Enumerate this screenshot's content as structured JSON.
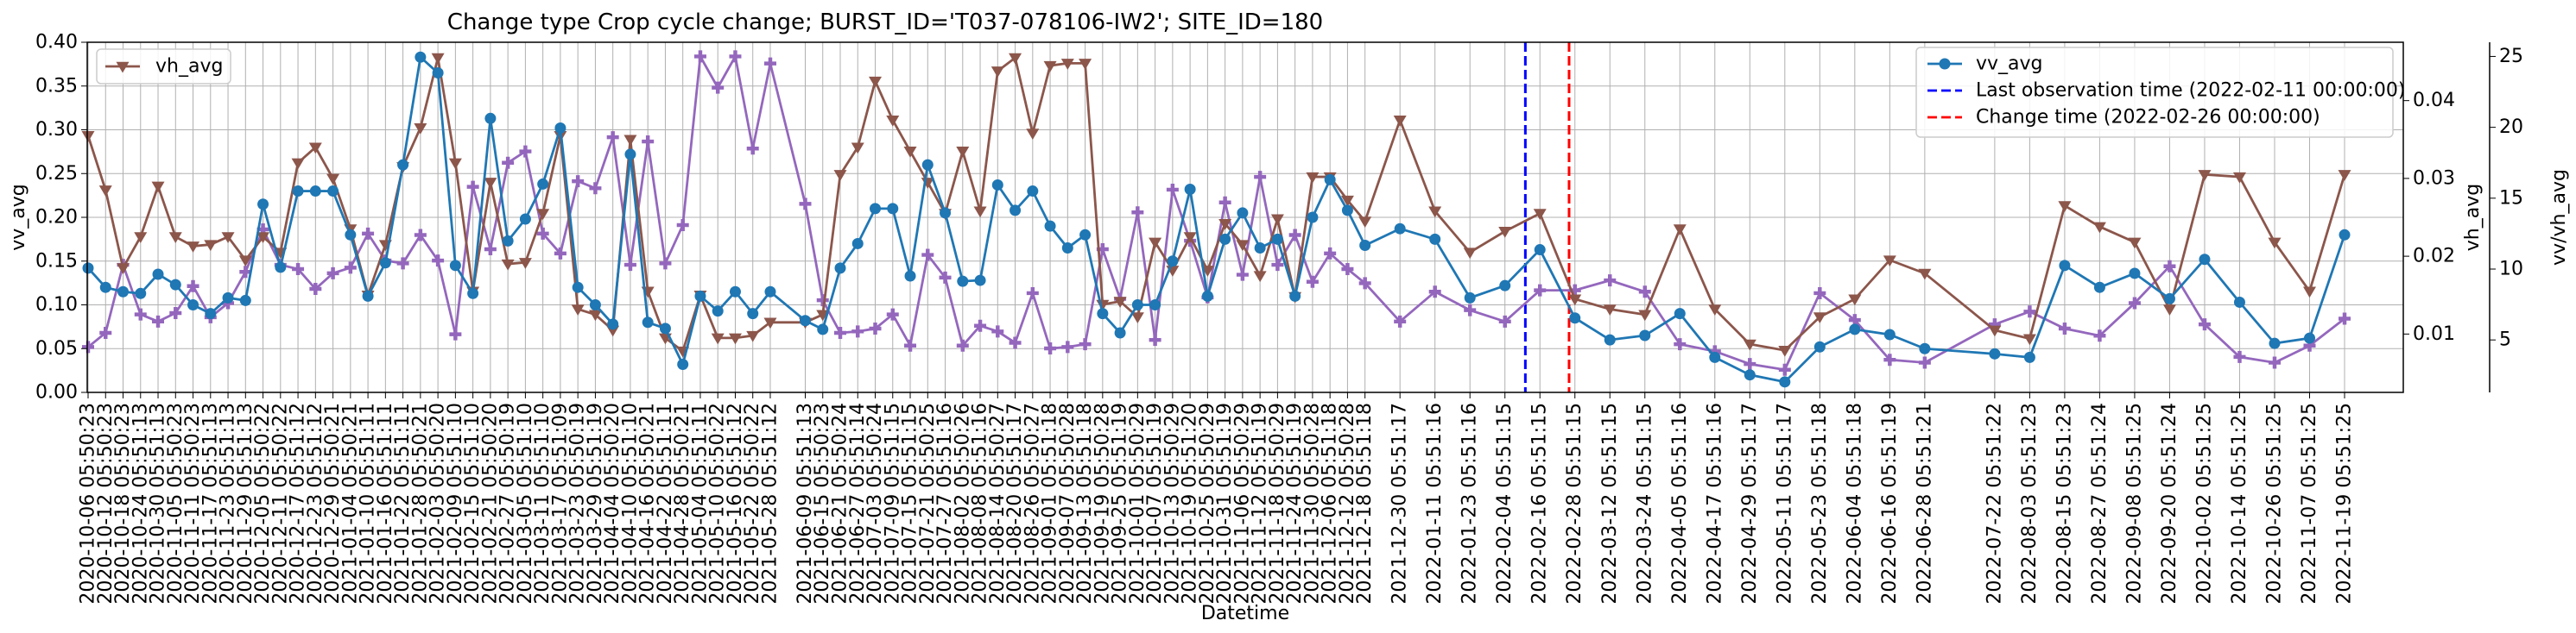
{
  "chart_data": {
    "type": "line",
    "title": "Change type Crop cycle change; BURST_ID='T037-078106-IW2'; SITE_ID=180",
    "xlabel": "Datetime",
    "ylabel_left": "vv_avg",
    "ylabel_right1": "vh_avg",
    "ylabel_right2": "vv/vh_avg",
    "ylim_left": [
      0,
      0.4
    ],
    "ylim_right1": [
      0.0025,
      0.0475
    ],
    "ylim_right2": [
      1.3,
      26.0
    ],
    "yticks_left": [
      "0.00",
      "0.05",
      "0.10",
      "0.15",
      "0.20",
      "0.25",
      "0.30",
      "0.35",
      "0.40"
    ],
    "yticks_right1": [
      "0.01",
      "0.02",
      "0.03",
      "0.04"
    ],
    "yticks_right2": [
      "5",
      "10",
      "15",
      "20",
      "25"
    ],
    "xtick_labels": [
      "2020-10-06 05:50:23",
      "2020-10-12 05:50:23",
      "2020-10-18 05:50:23",
      "2020-10-24 05:51:13",
      "2020-10-30 05:51:13",
      "2020-11-05 05:50:23",
      "2020-11-11 05:50:23",
      "2020-11-17 05:51:13",
      "2020-11-23 05:51:13",
      "2020-11-29 05:51:13",
      "2020-12-05 05:50:22",
      "2020-12-11 05:50:22",
      "2020-12-17 05:51:12",
      "2020-12-23 05:51:12",
      "2020-12-29 05:50:21",
      "2021-01-04 05:50:21",
      "2021-01-10 05:51:11",
      "2021-01-16 05:51:11",
      "2021-01-22 05:51:11",
      "2021-01-28 05:50:21",
      "2021-02-03 05:50:20",
      "2021-02-09 05:51:10",
      "2021-02-15 05:51:10",
      "2021-02-21 05:50:20",
      "2021-02-27 05:50:19",
      "2021-03-05 05:51:10",
      "2021-03-11 05:51:10",
      "2021-03-17 05:51:09",
      "2021-03-23 05:50:19",
      "2021-03-29 05:51:19",
      "2021-04-04 05:50:20",
      "2021-04-10 05:51:10",
      "2021-04-16 05:50:21",
      "2021-04-22 05:51:11",
      "2021-04-28 05:50:21",
      "2021-05-04 05:51:11",
      "2021-05-10 05:50:22",
      "2021-05-16 05:51:12",
      "2021-05-22 05:50:22",
      "2021-05-28 05:51:12",
      "2021-06-09 05:51:13",
      "2021-06-15 05:50:23",
      "2021-06-21 05:50:24",
      "2021-06-27 05:51:14",
      "2021-07-03 05:50:24",
      "2021-07-09 05:51:15",
      "2021-07-15 05:51:15",
      "2021-07-21 05:50:25",
      "2021-07-27 05:51:16",
      "2021-08-02 05:50:26",
      "2021-08-08 05:51:16",
      "2021-08-14 05:50:27",
      "2021-08-20 05:51:17",
      "2021-08-26 05:50:27",
      "2021-09-01 05:51:18",
      "2021-09-07 05:50:28",
      "2021-09-13 05:51:18",
      "2021-09-19 05:50:28",
      "2021-09-25 05:51:19",
      "2021-10-01 05:50:29",
      "2021-10-07 05:51:19",
      "2021-10-13 05:50:29",
      "2021-10-19 05:51:20",
      "2021-10-25 05:50:29",
      "2021-10-31 05:51:19",
      "2021-11-06 05:50:29",
      "2021-11-12 05:51:19",
      "2021-11-18 05:50:29",
      "2021-11-24 05:51:19",
      "2021-11-30 05:50:28",
      "2021-12-06 05:51:18",
      "2021-12-12 05:50:28",
      "2021-12-18 05:51:18",
      "2021-12-30 05:51:17",
      "2022-01-11 05:51:16",
      "2022-01-23 05:51:16",
      "2022-02-04 05:51:15",
      "2022-02-16 05:51:15",
      "2022-02-28 05:51:15",
      "2022-03-12 05:51:15",
      "2022-03-24 05:51:15",
      "2022-04-05 05:51:16",
      "2022-04-17 05:51:16",
      "2022-04-29 05:51:17",
      "2022-05-11 05:51:17",
      "2022-05-23 05:51:18",
      "2022-06-04 05:51:18",
      "2022-06-16 05:51:19",
      "2022-06-28 05:51:21",
      "2022-07-22 05:51:22",
      "2022-08-03 05:51:23",
      "2022-08-15 05:51:23",
      "2022-08-27 05:51:24",
      "2022-09-08 05:51:25",
      "2022-09-20 05:51:24",
      "2022-10-02 05:51:25",
      "2022-10-14 05:51:25",
      "2022-10-26 05:51:25",
      "2022-11-07 05:51:25",
      "2022-11-19 05:51:25"
    ],
    "x": [
      "2020-10-06",
      "2020-10-12",
      "2020-10-18",
      "2020-10-24",
      "2020-10-30",
      "2020-11-05",
      "2020-11-11",
      "2020-11-17",
      "2020-11-23",
      "2020-11-29",
      "2020-12-05",
      "2020-12-11",
      "2020-12-17",
      "2020-12-23",
      "2020-12-29",
      "2021-01-04",
      "2021-01-10",
      "2021-01-16",
      "2021-01-22",
      "2021-01-28",
      "2021-02-03",
      "2021-02-09",
      "2021-02-15",
      "2021-02-21",
      "2021-02-27",
      "2021-03-05",
      "2021-03-11",
      "2021-03-17",
      "2021-03-23",
      "2021-03-29",
      "2021-04-04",
      "2021-04-10",
      "2021-04-16",
      "2021-04-22",
      "2021-04-28",
      "2021-05-04",
      "2021-05-10",
      "2021-05-16",
      "2021-05-22",
      "2021-05-28",
      "2021-06-09",
      "2021-06-15",
      "2021-06-21",
      "2021-06-27",
      "2021-07-03",
      "2021-07-09",
      "2021-07-15",
      "2021-07-21",
      "2021-07-27",
      "2021-08-02",
      "2021-08-08",
      "2021-08-14",
      "2021-08-20",
      "2021-08-26",
      "2021-09-01",
      "2021-09-07",
      "2021-09-13",
      "2021-09-19",
      "2021-09-25",
      "2021-10-01",
      "2021-10-07",
      "2021-10-13",
      "2021-10-19",
      "2021-10-25",
      "2021-10-31",
      "2021-11-06",
      "2021-11-12",
      "2021-11-18",
      "2021-11-24",
      "2021-11-30",
      "2021-12-06",
      "2021-12-12",
      "2021-12-18",
      "2021-12-30",
      "2022-01-11",
      "2022-01-23",
      "2022-02-04",
      "2022-02-16",
      "2022-02-28",
      "2022-03-12",
      "2022-03-24",
      "2022-04-05",
      "2022-04-17",
      "2022-04-29",
      "2022-05-11",
      "2022-05-23",
      "2022-06-04",
      "2022-06-16",
      "2022-06-28",
      "2022-07-22",
      "2022-08-03",
      "2022-08-15",
      "2022-08-27",
      "2022-09-08",
      "2022-09-20",
      "2022-10-02",
      "2022-10-14",
      "2022-10-26",
      "2022-11-07",
      "2022-11-19"
    ],
    "series": [
      {
        "name": "vv_avg",
        "axis": "left",
        "color": "#1f77b4",
        "marker": "circle",
        "values": [
          0.142,
          0.12,
          0.115,
          0.113,
          0.135,
          0.123,
          0.1,
          0.09,
          0.108,
          0.105,
          0.215,
          0.143,
          0.23,
          0.23,
          0.23,
          0.18,
          0.11,
          0.148,
          0.26,
          0.383,
          0.365,
          0.145,
          0.113,
          0.313,
          0.173,
          0.198,
          0.238,
          0.302,
          0.12,
          0.1,
          0.078,
          0.272,
          0.08,
          0.073,
          0.032,
          0.11,
          0.093,
          0.115,
          0.09,
          0.115,
          0.082,
          0.072,
          0.142,
          0.17,
          0.21,
          0.21,
          0.133,
          0.26,
          0.205,
          0.127,
          0.128,
          0.237,
          0.208,
          0.23,
          0.19,
          0.165,
          0.18,
          0.09,
          0.068,
          0.1,
          0.1,
          0.15,
          0.232,
          0.11,
          0.175,
          0.205,
          0.165,
          0.175,
          0.11,
          0.2,
          0.243,
          0.208,
          0.168,
          0.187,
          0.175,
          0.108,
          0.122,
          0.163,
          0.085,
          0.06,
          0.065,
          0.09,
          0.04,
          0.02,
          0.012,
          0.052,
          0.072,
          0.066,
          0.05,
          0.044,
          0.04,
          0.145,
          0.12,
          0.136,
          0.107,
          0.152,
          0.103,
          0.056,
          0.062,
          0.18
        ]
      },
      {
        "name": "vh_avg",
        "axis": "right1",
        "color": "#8c564b",
        "marker": "triangle-down",
        "values": [
          0.0355,
          0.0285,
          0.0185,
          0.0225,
          0.029,
          0.0225,
          0.0213,
          0.0215,
          0.0225,
          0.0195,
          0.0225,
          0.0205,
          0.032,
          0.034,
          0.03,
          0.0235,
          0.015,
          0.0215,
          0.0315,
          0.0365,
          0.0455,
          0.032,
          0.0155,
          0.0295,
          0.019,
          0.0192,
          0.0255,
          0.0355,
          0.0132,
          0.0125,
          0.0105,
          0.035,
          0.0155,
          0.0095,
          0.0078,
          0.015,
          0.0095,
          0.0095,
          0.0098,
          0.0115,
          0.0115,
          0.0125,
          0.0305,
          0.034,
          0.0425,
          0.0375,
          0.0335,
          0.0295,
          0.0255,
          0.0335,
          0.0258,
          0.0438,
          0.0455,
          0.0358,
          0.0445,
          0.0448,
          0.0448,
          0.0138,
          0.0142,
          0.0122,
          0.0218,
          0.0182,
          0.0225,
          0.0182,
          0.0242,
          0.0215,
          0.0175,
          0.0248,
          0.0148,
          0.0302,
          0.0302,
          0.0272,
          0.0245,
          0.0375,
          0.0258,
          0.0205,
          0.0232,
          0.0255,
          0.0145,
          0.0132,
          0.0125,
          0.0235,
          0.0132,
          0.0087,
          0.0079,
          0.0122,
          0.0145,
          0.0195,
          0.0178,
          0.0105,
          0.0094,
          0.0265,
          0.0238,
          0.0218,
          0.0132,
          0.0305,
          0.0302,
          0.0218,
          0.0155,
          0.0305
        ]
      },
      {
        "name": "vv/vh_avg",
        "axis": "right2",
        "color": "#9467bd",
        "marker": "plus",
        "values": [
          4.5,
          5.5,
          10.3,
          6.8,
          6.3,
          6.9,
          8.8,
          6.6,
          7.6,
          9.8,
          12.8,
          10.3,
          10.0,
          8.6,
          9.7,
          10.1,
          12.5,
          10.6,
          10.4,
          12.4,
          10.6,
          5.4,
          15.8,
          11.4,
          17.5,
          18.3,
          12.5,
          11.1,
          16.2,
          15.7,
          19.3,
          10.3,
          19.0,
          10.4,
          13.1,
          25.0,
          22.8,
          25.0,
          18.5,
          24.5,
          14.6,
          7.8,
          5.5,
          5.6,
          5.8,
          6.8,
          4.6,
          11.0,
          9.4,
          4.6,
          6.0,
          5.6,
          4.8,
          8.3,
          4.4,
          4.5,
          4.7,
          11.4,
          7.9,
          14.0,
          5.0,
          15.6,
          12.0,
          8.0,
          14.7,
          9.6,
          16.5,
          10.3,
          12.4,
          9.1,
          11.1,
          10.0,
          9.0,
          6.3,
          8.4,
          7.1,
          6.3,
          8.5,
          8.5,
          9.2,
          8.4,
          4.7,
          4.2,
          3.3,
          2.9,
          8.3,
          6.4,
          3.6,
          3.4,
          6.1,
          7.0,
          5.8,
          5.3,
          7.6,
          10.2,
          6.1,
          3.8,
          3.4,
          4.6,
          6.5
        ]
      }
    ],
    "vlines": [
      {
        "label": "Last observation time (2022-02-11 00:00:00)",
        "x": "2022-02-11",
        "color": "#0000ff",
        "style": "dashed"
      },
      {
        "label": "Change time (2022-02-26 00:00:00)",
        "x": "2022-02-26",
        "color": "#ff0000",
        "style": "dashed"
      }
    ],
    "grid": true,
    "legend_left": "top-left",
    "legend_right": "top-right"
  }
}
